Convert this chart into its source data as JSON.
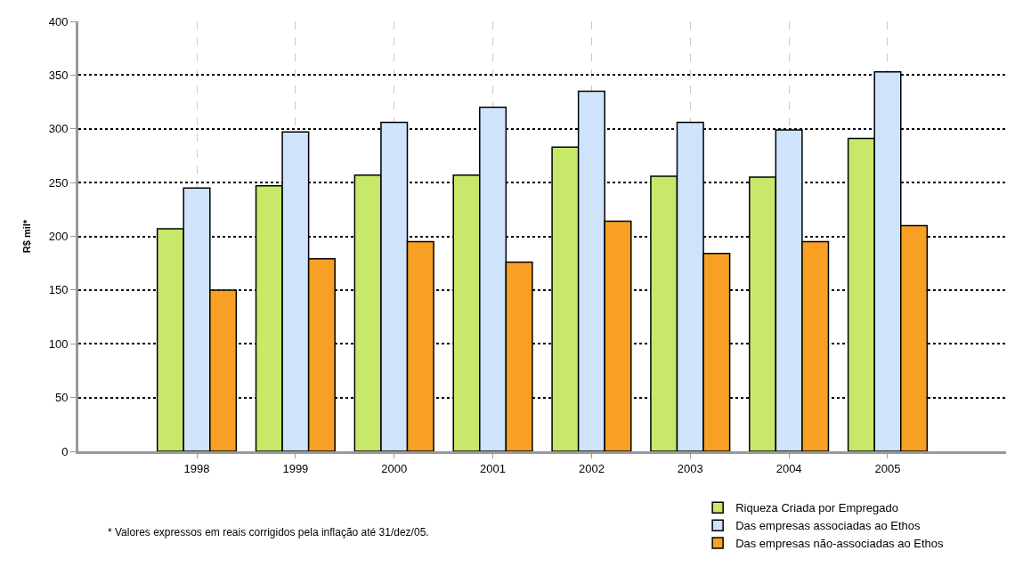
{
  "chart_data": {
    "type": "bar",
    "ylabel": "R$ mil*",
    "categories": [
      "1998",
      "1999",
      "2000",
      "2001",
      "2002",
      "2003",
      "2004",
      "2005"
    ],
    "series": [
      {
        "name": "Riqueza Criada por Empregado",
        "color": "#c8e86a",
        "values": [
          207,
          247,
          257,
          257,
          283,
          256,
          255,
          291
        ]
      },
      {
        "name": "Das empresas associadas ao Ethos",
        "color": "#cfe3fb",
        "values": [
          245,
          297,
          306,
          320,
          335,
          306,
          299,
          353
        ]
      },
      {
        "name": "Das empresas não-associadas ao Ethos",
        "color": "#f7a024",
        "values": [
          150,
          179,
          195,
          176,
          214,
          184,
          195,
          210
        ]
      }
    ],
    "ylim": [
      0,
      400
    ],
    "yticks": [
      0,
      50,
      100,
      150,
      200,
      250,
      300,
      350,
      400
    ],
    "grid": true,
    "legend": "bottom right",
    "annotations": [
      "* Valores expressos em reais corrigidos pela inflação até 31/dez/05."
    ]
  }
}
